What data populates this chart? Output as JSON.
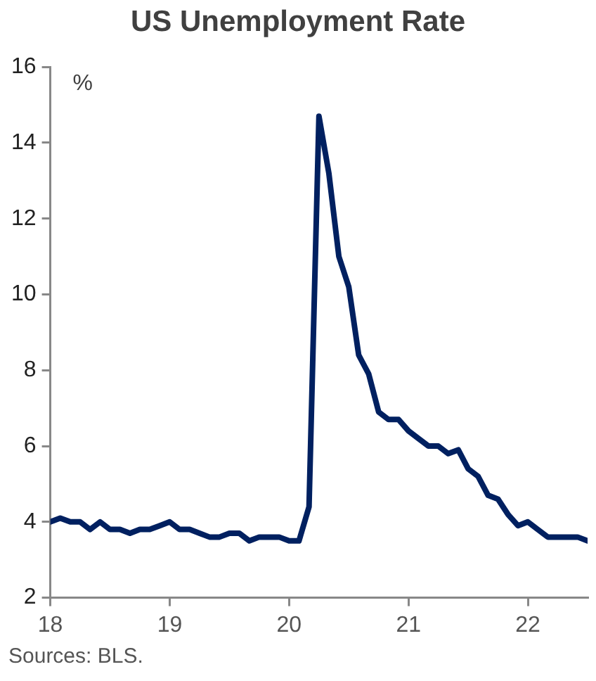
{
  "chart_data": {
    "type": "line",
    "title": "US Unemployment Rate",
    "ylabel": "%",
    "annotations": [
      "Sources: BLS."
    ],
    "x": [
      18,
      18.083,
      18.167,
      18.25,
      18.333,
      18.417,
      18.5,
      18.583,
      18.667,
      18.75,
      18.833,
      18.917,
      19,
      19.083,
      19.167,
      19.25,
      19.333,
      19.417,
      19.5,
      19.583,
      19.667,
      19.75,
      19.833,
      19.917,
      20,
      20.083,
      20.167,
      20.25,
      20.333,
      20.417,
      20.5,
      20.583,
      20.667,
      20.75,
      20.833,
      20.917,
      21,
      21.083,
      21.167,
      21.25,
      21.333,
      21.417,
      21.5,
      21.583,
      21.667,
      21.75,
      21.833,
      21.917,
      22,
      22.083,
      22.167,
      22.25,
      22.333,
      22.417,
      22.5
    ],
    "series": [
      {
        "color": "#002060",
        "values": [
          4.0,
          4.1,
          4.0,
          4.0,
          3.8,
          4.0,
          3.8,
          3.8,
          3.7,
          3.8,
          3.8,
          3.9,
          4.0,
          3.8,
          3.8,
          3.7,
          3.6,
          3.6,
          3.7,
          3.7,
          3.5,
          3.6,
          3.6,
          3.6,
          3.5,
          3.5,
          4.4,
          14.7,
          13.2,
          11.0,
          10.2,
          8.4,
          7.9,
          6.9,
          6.7,
          6.7,
          6.4,
          6.2,
          6.0,
          6.0,
          5.8,
          5.9,
          5.4,
          5.2,
          4.7,
          4.6,
          4.2,
          3.9,
          4.0,
          3.8,
          3.6,
          3.6,
          3.6,
          3.6,
          3.5
        ]
      }
    ],
    "xlim": [
      18,
      22.5
    ],
    "xticks": [
      18,
      19,
      20,
      21,
      22
    ],
    "ylim": [
      2,
      16
    ],
    "yticks": [
      2,
      4,
      6,
      8,
      10,
      12,
      14,
      16
    ],
    "grid": false,
    "legend": false,
    "marker": "none",
    "line_style": "solid"
  }
}
